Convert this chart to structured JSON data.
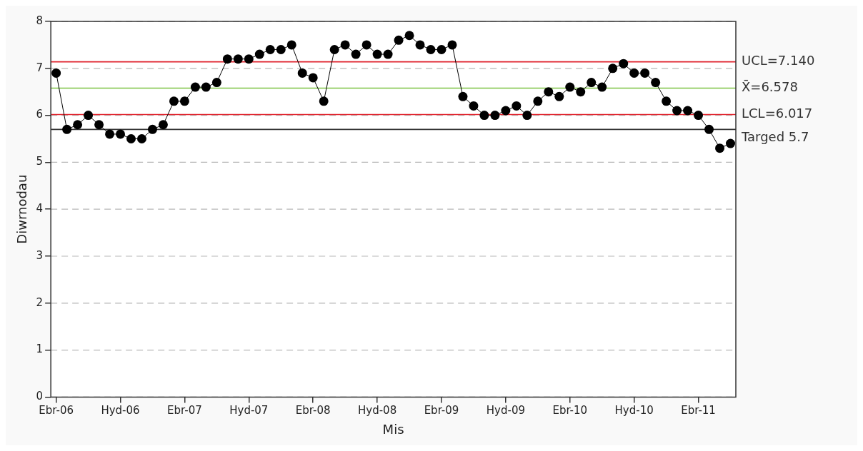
{
  "chart_data": {
    "type": "line",
    "xlabel": "Mis",
    "ylabel": "Diwrnodau",
    "categories": [
      "Ebr-06",
      null,
      null,
      null,
      null,
      null,
      "Hyd-06",
      null,
      null,
      null,
      null,
      null,
      "Ebr-07",
      null,
      null,
      null,
      null,
      null,
      "Hyd-07",
      null,
      null,
      null,
      null,
      null,
      "Ebr-08",
      null,
      null,
      null,
      null,
      null,
      "Hyd-08",
      null,
      null,
      null,
      null,
      null,
      "Ebr-09",
      null,
      null,
      null,
      null,
      null,
      "Hyd-09",
      null,
      null,
      null,
      null,
      null,
      "Ebr-10",
      null,
      null,
      null,
      null,
      null,
      "Hyd-10",
      null,
      null,
      null,
      null,
      null,
      "Ebr-11",
      null,
      null,
      null
    ],
    "series": [
      {
        "color": "#000000",
        "values": [
          6.9,
          5.7,
          5.8,
          6.0,
          5.8,
          5.6,
          5.6,
          5.5,
          5.5,
          5.7,
          5.8,
          6.3,
          6.3,
          6.6,
          6.6,
          6.7,
          7.2,
          7.2,
          7.2,
          7.3,
          7.4,
          7.4,
          7.5,
          6.9,
          6.8,
          6.3,
          7.4,
          7.5,
          7.3,
          7.5,
          7.3,
          7.3,
          7.6,
          7.7,
          7.5,
          7.4,
          7.4,
          7.5,
          6.4,
          6.2,
          6.0,
          6.0,
          6.1,
          6.2,
          6.0,
          6.3,
          6.5,
          6.4,
          6.6,
          6.5,
          6.7,
          6.6,
          7.0,
          7.1,
          6.9,
          6.9,
          6.7,
          6.3,
          6.1,
          6.1,
          6.0,
          5.7,
          5.3,
          5.4
        ]
      }
    ],
    "ylim": [
      0,
      8
    ],
    "yticks": [
      0,
      1,
      2,
      3,
      4,
      5,
      6,
      7,
      8
    ],
    "grid": "y",
    "legend": false,
    "marker": "circle",
    "line_style": "solid",
    "ref_lines": [
      {
        "axis": "y",
        "value": 7.14,
        "label": "UCL=7.140",
        "color": "#e0202a"
      },
      {
        "axis": "y",
        "value": 6.578,
        "label": "X̄=6.578",
        "color": "#7cc243"
      },
      {
        "axis": "y",
        "value": 6.017,
        "label": "LCL=6.017",
        "color": "#e0202a"
      },
      {
        "axis": "y",
        "value": 5.7,
        "label": "Targed 5.7",
        "color": "#333333"
      }
    ]
  }
}
